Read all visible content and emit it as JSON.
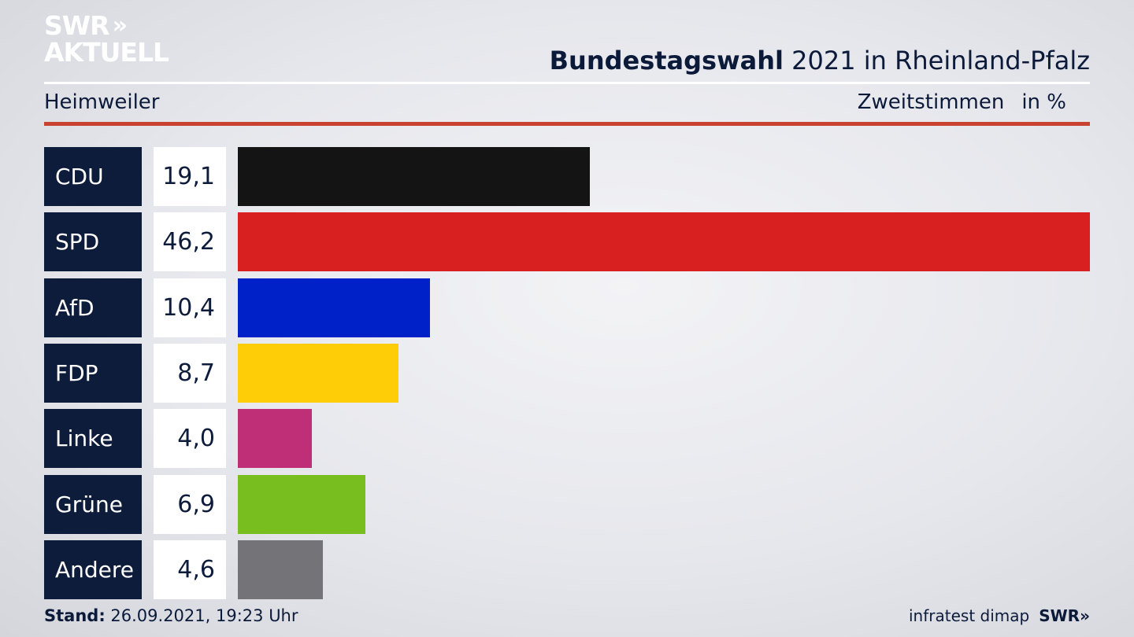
{
  "branding": {
    "logo_line1": "SWR",
    "logo_line2": "AKTUELL",
    "logo_chevrons": "»",
    "footer_source": "infratest dimap",
    "footer_logo": "SWR»"
  },
  "header": {
    "title_bold": "Bundestagswahl",
    "title_rest": "2021 in Rheinland-Pfalz",
    "region": "Heimweiler",
    "measure": "Zweitstimmen",
    "unit": "in %"
  },
  "footer": {
    "stand_label": "Stand:",
    "stand_value": "26.09.2021, 19:23 Uhr"
  },
  "chart_data": {
    "type": "bar",
    "orientation": "horizontal",
    "categories": [
      "CDU",
      "SPD",
      "AfD",
      "FDP",
      "Linke",
      "Grüne",
      "Andere"
    ],
    "values": [
      19.1,
      46.2,
      10.4,
      8.7,
      4.0,
      6.9,
      4.6
    ],
    "value_labels": [
      "19,1",
      "46,2",
      "10,4",
      "8,7",
      "4,0",
      "6,9",
      "4,6"
    ],
    "colors": [
      "#141414",
      "#d82020",
      "#0020c8",
      "#ffcc08",
      "#be2f78",
      "#78be1e",
      "#747478"
    ],
    "xlim": [
      0,
      46.2
    ],
    "grid": false
  }
}
